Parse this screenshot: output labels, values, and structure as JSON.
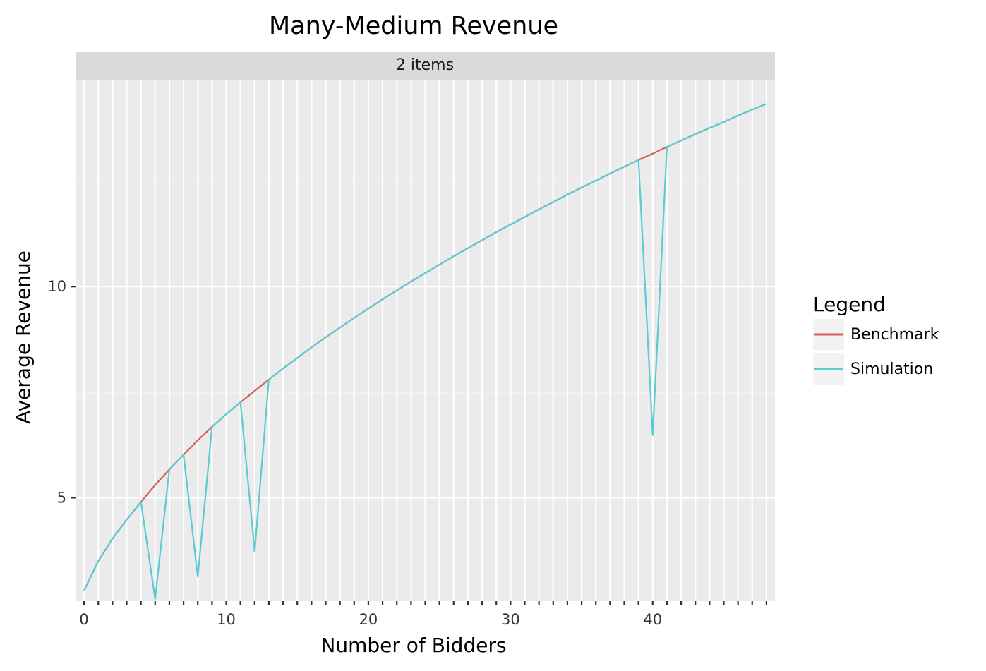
{
  "chart_data": {
    "type": "line",
    "title": "Many-Medium Revenue",
    "facet_label": "2 items",
    "xlabel": "Number of Bidders",
    "ylabel": "Average Revenue",
    "xlim": [
      -0.6,
      48.6
    ],
    "ylim": [
      2.55,
      14.9
    ],
    "x_ticks": [
      0,
      10,
      20,
      30,
      40
    ],
    "y_ticks": [
      5,
      10
    ],
    "grid": true,
    "legend": {
      "title": "Legend",
      "position": "right",
      "entries": [
        {
          "label": "Benchmark",
          "color": "#d5605a"
        },
        {
          "label": "Simulation",
          "color": "#5bcbd2"
        }
      ]
    },
    "x": [
      0,
      1,
      2,
      3,
      4,
      5,
      6,
      7,
      8,
      9,
      10,
      11,
      12,
      13,
      14,
      15,
      16,
      17,
      18,
      19,
      20,
      21,
      22,
      23,
      24,
      25,
      26,
      27,
      28,
      29,
      30,
      31,
      32,
      33,
      34,
      35,
      36,
      37,
      38,
      39,
      40,
      41,
      42,
      43,
      44,
      45,
      46,
      47,
      48
    ],
    "series": [
      {
        "name": "Benchmark",
        "color": "#d5605a",
        "values": [
          2.8,
          3.5,
          4.03,
          4.48,
          4.9,
          5.3,
          5.67,
          6.02,
          6.36,
          6.68,
          6.98,
          7.26,
          7.53,
          7.8,
          8.06,
          8.31,
          8.56,
          8.8,
          9.03,
          9.26,
          9.48,
          9.7,
          9.91,
          10.12,
          10.32,
          10.52,
          10.72,
          10.91,
          11.1,
          11.29,
          11.47,
          11.65,
          11.83,
          12.0,
          12.18,
          12.35,
          12.51,
          12.68,
          12.84,
          13.0,
          13.15,
          13.31,
          13.46,
          13.61,
          13.76,
          13.9,
          14.05,
          14.19,
          14.33
        ]
      },
      {
        "name": "Simulation",
        "color": "#5bcbd2",
        "values": [
          2.8,
          3.5,
          4.03,
          4.48,
          4.9,
          2.6,
          5.67,
          6.02,
          3.13,
          6.68,
          6.98,
          7.26,
          3.73,
          7.8,
          8.06,
          8.31,
          8.56,
          8.8,
          9.03,
          9.26,
          9.48,
          9.7,
          9.91,
          10.12,
          10.32,
          10.52,
          10.72,
          10.91,
          11.1,
          11.29,
          11.47,
          11.65,
          11.83,
          12.0,
          12.18,
          12.35,
          12.51,
          12.68,
          12.84,
          13.0,
          6.48,
          13.31,
          13.46,
          13.61,
          13.76,
          13.9,
          14.05,
          14.19,
          14.33
        ]
      }
    ]
  }
}
